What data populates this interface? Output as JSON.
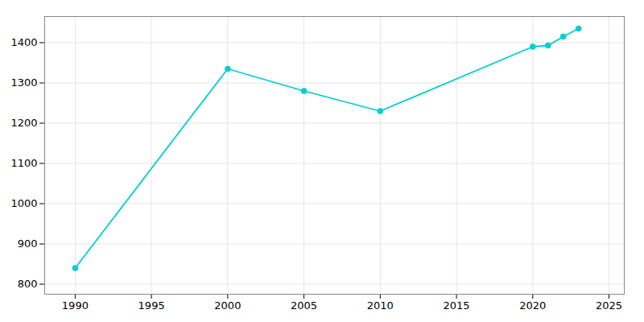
{
  "chart_data": {
    "type": "line",
    "x": [
      1990,
      2000,
      2005,
      2010,
      2020,
      2021,
      2022,
      2023
    ],
    "values": [
      840,
      1335,
      1280,
      1230,
      1390,
      1393,
      1415,
      1435
    ],
    "color": "#00CED1",
    "marker": "circle",
    "xlim": [
      1988,
      2026
    ],
    "ylim": [
      775,
      1465
    ],
    "xticks": [
      1990,
      1995,
      2000,
      2005,
      2010,
      2015,
      2020,
      2025
    ],
    "yticks": [
      800,
      900,
      1000,
      1100,
      1200,
      1300,
      1400
    ],
    "grid": true
  }
}
